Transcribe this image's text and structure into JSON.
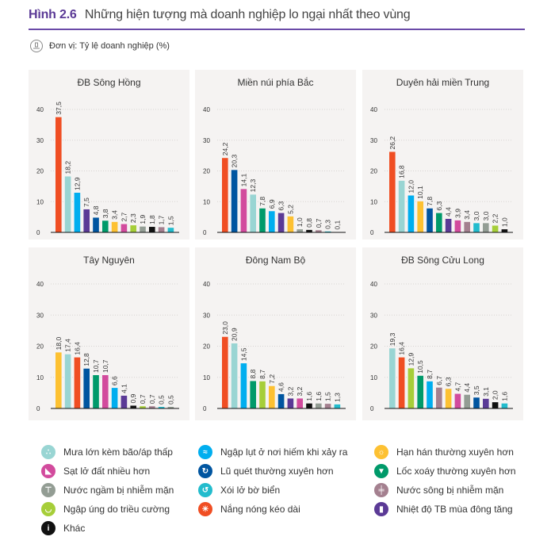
{
  "header": {
    "figure_label": "Hình 2.6",
    "title": "Những hiện tượng mà doanh nghiệp lo ngại nhất theo vùng",
    "unit": "Đơn vị: Tỷ lệ doanh nghiệp (%)",
    "unit_icon": "chart-unit-icon"
  },
  "categories": {
    "heat": {
      "label": "Nắng nóng kéo dài",
      "color": "#f04e23",
      "icon": "sun-heat-icon"
    },
    "rain": {
      "label": "Mưa lớn kèm bão/áp thấp",
      "color": "#99d5d3",
      "icon": "rain-icon"
    },
    "flood": {
      "label": "Ngập lụt ở nơi hiếm khi xảy ra",
      "color": "#00aeef",
      "icon": "flood-icon"
    },
    "wintertemp": {
      "label": "Nhiệt độ TB mùa đông tăng",
      "color": "#5b3a96",
      "icon": "thermometer-icon"
    },
    "flashflood": {
      "label": "Lũ quét thường xuyên hơn",
      "color": "#0055a0",
      "icon": "flash-flood-icon"
    },
    "whirlwind": {
      "label": "Lốc xoáy thường xuyên hơn",
      "color": "#009a6a",
      "icon": "tornado-icon"
    },
    "drought": {
      "label": "Hạn hán thường xuyên hơn",
      "color": "#fdc132",
      "icon": "drought-icon"
    },
    "landslide": {
      "label": "Sạt lở đất nhiều hơn",
      "color": "#d24b9d",
      "icon": "landslide-icon"
    },
    "tidal": {
      "label": "Ngập úng do triều cường",
      "color": "#a6ce39",
      "icon": "tidal-flood-icon"
    },
    "groundsalt": {
      "label": "Nước ngầm bị nhiễm mặn",
      "color": "#939d94",
      "icon": "faucet-icon"
    },
    "other": {
      "label": "Khác",
      "color": "#111111",
      "icon": "info-icon"
    },
    "riversalt": {
      "label": "Nước sông bị nhiễm mặn",
      "color": "#a4808f",
      "icon": "river-salt-icon"
    },
    "erosion": {
      "label": "Xói lở bờ biển",
      "color": "#23bccd",
      "icon": "coast-erosion-icon"
    }
  },
  "legend": [
    [
      "rain",
      "flood",
      "drought"
    ],
    [
      "landslide",
      "flashflood",
      "whirlwind"
    ],
    [
      "groundsalt",
      "erosion",
      "riversalt"
    ],
    [
      "tidal",
      "heat",
      "wintertemp"
    ],
    [
      "other"
    ]
  ],
  "chart_data": [
    {
      "type": "bar",
      "title": "ĐB Sông Hồng",
      "ylim": [
        0,
        40
      ],
      "yticks": [
        0,
        10,
        20,
        30,
        40
      ],
      "grid": true,
      "categories": [
        "heat",
        "rain",
        "flood",
        "wintertemp",
        "flashflood",
        "whirlwind",
        "drought",
        "landslide",
        "tidal",
        "groundsalt",
        "other",
        "riversalt",
        "erosion"
      ],
      "values": [
        37.5,
        18.2,
        12.9,
        7.5,
        4.8,
        3.8,
        3.4,
        2.7,
        2.3,
        1.9,
        1.8,
        1.7,
        1.5
      ],
      "labels": [
        "37,5",
        "18,2",
        "12,9",
        "7,5",
        "4,8",
        "3,8",
        "3,4",
        "2,7",
        "2,3",
        "1,9",
        "1,8",
        "1,7",
        "1,5"
      ]
    },
    {
      "type": "bar",
      "title": "Miền núi phía Bắc",
      "ylim": [
        0,
        40
      ],
      "yticks": [
        0,
        10,
        20,
        30,
        40
      ],
      "grid": true,
      "categories": [
        "heat",
        "flashflood",
        "landslide",
        "rain",
        "whirlwind",
        "flood",
        "wintertemp",
        "drought",
        "groundsalt",
        "other",
        "riversalt",
        "erosion",
        "tidal"
      ],
      "values": [
        24.2,
        20.3,
        14.1,
        12.3,
        7.8,
        6.9,
        6.3,
        5.2,
        1.0,
        0.8,
        0.7,
        0.3,
        0.1
      ],
      "labels": [
        "24,2",
        "20,3",
        "14,1",
        "12,3",
        "7,8",
        "6,9",
        "6,3",
        "5,2",
        "1,0",
        "0,8",
        "0,7",
        "0,3",
        "0,1"
      ]
    },
    {
      "type": "bar",
      "title": "Duyên hải miền Trung",
      "ylim": [
        0,
        40
      ],
      "yticks": [
        0,
        10,
        20,
        30,
        40
      ],
      "grid": true,
      "categories": [
        "heat",
        "rain",
        "flood",
        "drought",
        "flashflood",
        "whirlwind",
        "wintertemp",
        "landslide",
        "riversalt",
        "erosion",
        "groundsalt",
        "tidal",
        "other"
      ],
      "values": [
        26.2,
        16.8,
        12.0,
        10.1,
        7.8,
        6.3,
        4.4,
        3.9,
        3.4,
        3.0,
        3.0,
        2.2,
        1.0
      ],
      "labels": [
        "26,2",
        "16,8",
        "12,0",
        "10,1",
        "7,8",
        "6,3",
        "4,4",
        "3,9",
        "3,4",
        "3,0",
        "3,0",
        "2,2",
        "1,0"
      ]
    },
    {
      "type": "bar",
      "title": "Tây Nguyên",
      "ylim": [
        0,
        40
      ],
      "yticks": [
        0,
        10,
        20,
        30,
        40
      ],
      "grid": true,
      "categories": [
        "drought",
        "rain",
        "heat",
        "flashflood",
        "whirlwind",
        "landslide",
        "flood",
        "wintertemp",
        "other",
        "tidal",
        "riversalt",
        "erosion",
        "groundsalt"
      ],
      "values": [
        18.0,
        17.4,
        16.4,
        12.8,
        10.7,
        10.7,
        6.6,
        4.1,
        0.9,
        0.7,
        0.7,
        0.5,
        0.5
      ],
      "labels": [
        "18,0",
        "17,4",
        "16,4",
        "12,8",
        "10,7",
        "10,7",
        "6,6",
        "4,1",
        "0,9",
        "0,7",
        "0,7",
        "0,5",
        "0,5"
      ]
    },
    {
      "type": "bar",
      "title": "Đông Nam Bộ",
      "ylim": [
        0,
        40
      ],
      "yticks": [
        0,
        10,
        20,
        30,
        40
      ],
      "grid": true,
      "categories": [
        "heat",
        "rain",
        "flood",
        "whirlwind",
        "tidal",
        "drought",
        "flashflood",
        "wintertemp",
        "landslide",
        "other",
        "groundsalt",
        "riversalt",
        "erosion"
      ],
      "values": [
        23.0,
        20.9,
        14.5,
        8.8,
        8.7,
        7.2,
        4.6,
        3.2,
        3.2,
        1.6,
        1.6,
        1.5,
        1.3
      ],
      "labels": [
        "23,0",
        "20,9",
        "14,5",
        "8,8",
        "8,7",
        "7,2",
        "4,6",
        "3,2",
        "3,2",
        "1,6",
        "1,6",
        "1,5",
        "1,3"
      ]
    },
    {
      "type": "bar",
      "title": "ĐB Sông Cửu Long",
      "ylim": [
        0,
        40
      ],
      "yticks": [
        0,
        10,
        20,
        30,
        40
      ],
      "grid": true,
      "categories": [
        "rain",
        "heat",
        "tidal",
        "whirlwind",
        "flood",
        "riversalt",
        "drought",
        "landslide",
        "groundsalt",
        "flashflood",
        "wintertemp",
        "other",
        "erosion"
      ],
      "values": [
        19.3,
        16.4,
        12.9,
        10.5,
        8.7,
        6.7,
        6.3,
        4.7,
        4.4,
        3.5,
        3.1,
        2.0,
        1.6
      ],
      "labels": [
        "19,3",
        "16,4",
        "12,9",
        "10,5",
        "8,7",
        "6,7",
        "6,3",
        "4,7",
        "4,4",
        "3,5",
        "3,1",
        "2,0",
        "1,6"
      ]
    }
  ]
}
